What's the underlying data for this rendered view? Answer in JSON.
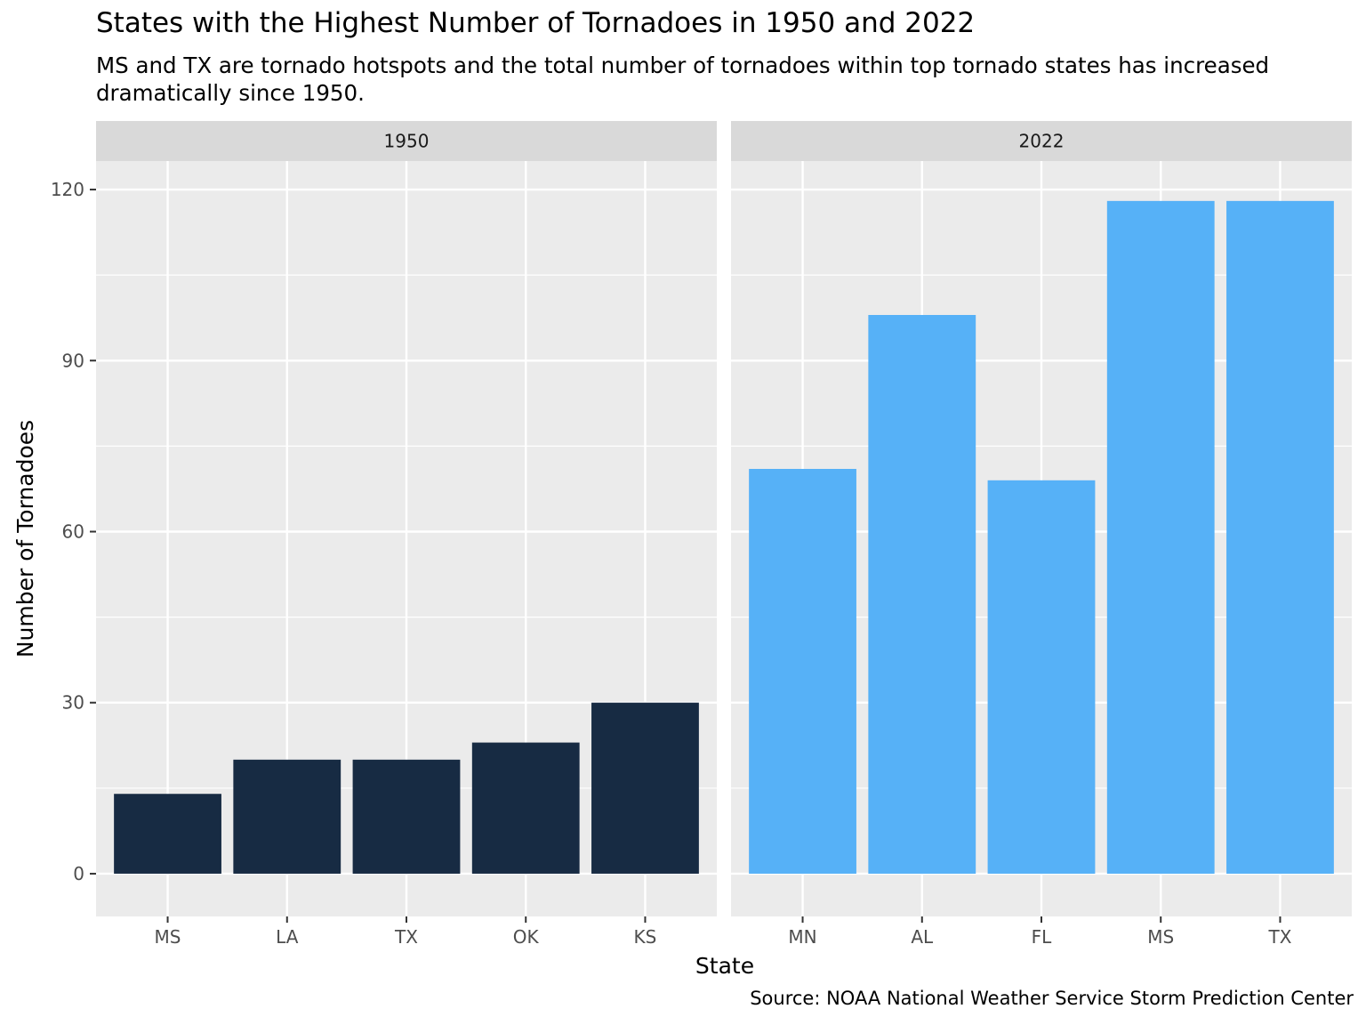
{
  "chart_data": {
    "type": "bar",
    "title": "States with the Highest Number of Tornadoes in 1950 and 2022",
    "subtitle": "MS and TX are tornado hotspots and the total number of tornadoes within top tornado states has increased dramatically since 1950.",
    "caption": "Source: NOAA National Weather Service Storm Prediction Center",
    "xlabel": "State",
    "ylabel": "Number of Tornadoes",
    "ylim": [
      -7.5,
      125
    ],
    "yticks": [
      0,
      30,
      60,
      90,
      120
    ],
    "grid": true,
    "legend": "none",
    "panels": [
      {
        "label": "1950",
        "color": "#172b43",
        "categories": [
          "MS",
          "LA",
          "TX",
          "OK",
          "KS"
        ],
        "values": [
          14,
          20,
          20,
          23,
          30
        ]
      },
      {
        "label": "2022",
        "color": "#56b1f7",
        "categories": [
          "MN",
          "AL",
          "FL",
          "MS",
          "TX"
        ],
        "values": [
          71,
          98,
          69,
          118,
          118
        ]
      }
    ]
  },
  "colors": {
    "panel_background": "#ebebeb",
    "strip_background": "#d9d9d9",
    "grid_line": "#ffffff",
    "axis_text": "#4d4d4d"
  }
}
